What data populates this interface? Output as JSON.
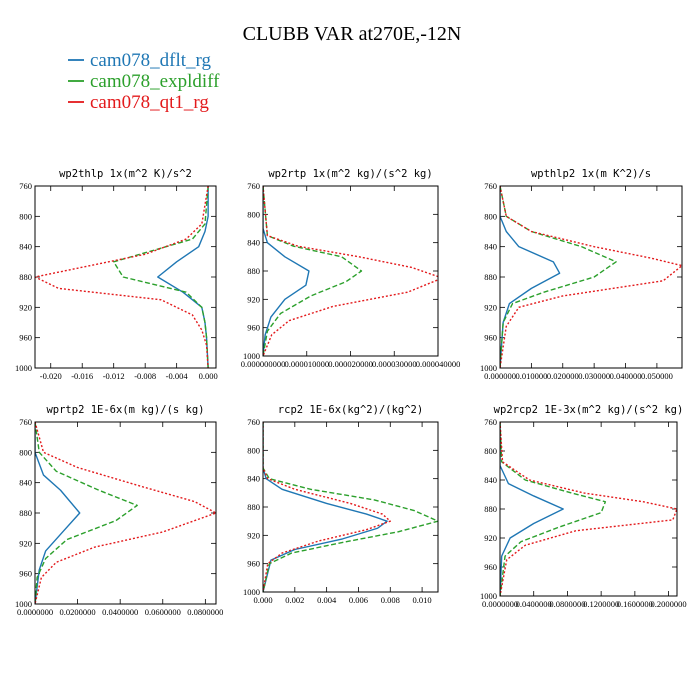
{
  "figure": {
    "title": "CLUBB VAR at270E,-12N",
    "legend": [
      {
        "label": "cam078_dflt_rg",
        "color": "#1f77b4",
        "dash": "solid"
      },
      {
        "label": "cam078_expldiff",
        "color": "#2ca02c",
        "dash": "dashed"
      },
      {
        "label": "cam078_qt1_rg",
        "color": "#e31a1c",
        "dash": "dotted"
      }
    ]
  },
  "chart_data": [
    {
      "type": "line",
      "title": "wp2thlp   1x(m^2 K)/s^2",
      "xlim": [
        -0.022,
        0.001
      ],
      "ylim": [
        760,
        1000
      ],
      "y_inverted": true,
      "xticks": [
        -0.02,
        -0.016,
        -0.012,
        -0.008,
        -0.004,
        0.0
      ],
      "xtick_labels": [
        "-0.020",
        "-0.016",
        "-0.012",
        "-0.008",
        "-0.004",
        "0.000"
      ],
      "yticks": [
        760,
        800,
        840,
        880,
        920,
        960,
        1000
      ],
      "ytick_labels": [
        "760",
        "800",
        "840",
        "880",
        "920",
        "960",
        "1000"
      ],
      "series": [
        {
          "name": "cam078_dflt_rg",
          "points": [
            [
              0.0,
              760
            ],
            [
              0.0,
              800
            ],
            [
              -0.0004,
              820
            ],
            [
              -0.0012,
              840
            ],
            [
              -0.004,
              860
            ],
            [
              -0.0064,
              880
            ],
            [
              -0.0032,
              900
            ],
            [
              -0.0008,
              920
            ],
            [
              -0.0004,
              940
            ],
            [
              -0.0002,
              960
            ],
            [
              0.0,
              1000
            ]
          ]
        },
        {
          "name": "cam078_expldiff",
          "points": [
            [
              0.0,
              760
            ],
            [
              -0.0004,
              810
            ],
            [
              -0.002,
              830
            ],
            [
              -0.012,
              860
            ],
            [
              -0.0108,
              880
            ],
            [
              -0.0028,
              900
            ],
            [
              -0.0008,
              920
            ],
            [
              -0.0004,
              940
            ],
            [
              -0.0002,
              960
            ],
            [
              0.0,
              1000
            ]
          ]
        },
        {
          "name": "cam078_qt1_rg",
          "points": [
            [
              0.0,
              760
            ],
            [
              -0.0008,
              810
            ],
            [
              -0.0028,
              830
            ],
            [
              -0.008,
              850
            ],
            [
              -0.015,
              865
            ],
            [
              -0.022,
              880
            ],
            [
              -0.019,
              895
            ],
            [
              -0.006,
              910
            ],
            [
              -0.002,
              930
            ],
            [
              -0.0008,
              950
            ],
            [
              -0.0002,
              970
            ],
            [
              0.0,
              1000
            ]
          ]
        }
      ]
    },
    {
      "type": "line",
      "title": "wp2rtp   1x(m^2 kg)/(s^2 kg)",
      "xlim": [
        0,
        4e-05
      ],
      "ylim": [
        760,
        1000
      ],
      "y_inverted": true,
      "xticks": [
        0,
        1e-05,
        2e-05,
        3e-05,
        4e-05
      ],
      "xtick_labels": [
        "0.000000000",
        "0.000010000",
        "0.000020000",
        "0.000030000",
        "0.000040000"
      ],
      "yticks": [
        760,
        800,
        840,
        880,
        920,
        960,
        1000
      ],
      "ytick_labels": [
        "760",
        "800",
        "840",
        "880",
        "920",
        "960",
        "1000"
      ],
      "series": [
        {
          "name": "cam078_dflt_rg",
          "points": [
            [
              0,
              760
            ],
            [
              0,
              820
            ],
            [
              1e-06,
              840
            ],
            [
              5e-06,
              860
            ],
            [
              1.05e-05,
              880
            ],
            [
              9.8e-06,
              900
            ],
            [
              5e-06,
              920
            ],
            [
              1.8e-06,
              945
            ],
            [
              5e-07,
              970
            ],
            [
              0,
              1000
            ]
          ]
        },
        {
          "name": "cam078_expldiff",
          "points": [
            [
              0,
              760
            ],
            [
              1e-06,
              830
            ],
            [
              7e-06,
              845
            ],
            [
              1.8e-05,
              860
            ],
            [
              2.25e-05,
              880
            ],
            [
              1.9e-05,
              895
            ],
            [
              1.1e-05,
              915
            ],
            [
              4e-06,
              940
            ],
            [
              1e-06,
              965
            ],
            [
              0,
              1000
            ]
          ]
        },
        {
          "name": "cam078_qt1_rg",
          "points": [
            [
              0,
              760
            ],
            [
              1e-06,
              830
            ],
            [
              8e-06,
              845
            ],
            [
              2.2e-05,
              860
            ],
            [
              3.4e-05,
              875
            ],
            [
              4.1e-05,
              890
            ],
            [
              3.3e-05,
              910
            ],
            [
              1.6e-05,
              930
            ],
            [
              6e-06,
              950
            ],
            [
              2e-06,
              970
            ],
            [
              0,
              1000
            ]
          ]
        }
      ]
    },
    {
      "type": "line",
      "title": "wpthlp2   1x(m K^2)/s",
      "xlim": [
        0,
        0.058
      ],
      "ylim": [
        760,
        1000
      ],
      "y_inverted": true,
      "xticks": [
        0,
        0.01,
        0.02,
        0.03,
        0.04,
        0.05
      ],
      "xtick_labels": [
        "0.000000",
        "0.010000",
        "0.020000",
        "0.030000",
        "0.040000",
        "0.050000"
      ],
      "yticks": [
        760,
        800,
        840,
        880,
        920,
        960,
        1000
      ],
      "ytick_labels": [
        "760",
        "800",
        "840",
        "880",
        "920",
        "960",
        "1000"
      ],
      "series": [
        {
          "name": "cam078_dflt_rg",
          "points": [
            [
              0,
              760
            ],
            [
              0,
              800
            ],
            [
              0.002,
              820
            ],
            [
              0.006,
              840
            ],
            [
              0.017,
              860
            ],
            [
              0.019,
              875
            ],
            [
              0.01,
              895
            ],
            [
              0.003,
              915
            ],
            [
              0.001,
              940
            ],
            [
              0,
              1000
            ]
          ]
        },
        {
          "name": "cam078_expldiff",
          "points": [
            [
              0,
              760
            ],
            [
              0.002,
              800
            ],
            [
              0.01,
              820
            ],
            [
              0.026,
              840
            ],
            [
              0.037,
              860
            ],
            [
              0.03,
              880
            ],
            [
              0.014,
              900
            ],
            [
              0.004,
              915
            ],
            [
              0.001,
              940
            ],
            [
              0,
              1000
            ]
          ]
        },
        {
          "name": "cam078_qt1_rg",
          "points": [
            [
              0,
              760
            ],
            [
              0.002,
              800
            ],
            [
              0.01,
              820
            ],
            [
              0.03,
              840
            ],
            [
              0.048,
              855
            ],
            [
              0.058,
              865
            ],
            [
              0.052,
              885
            ],
            [
              0.02,
              905
            ],
            [
              0.006,
              920
            ],
            [
              0.002,
              945
            ],
            [
              0,
              1000
            ]
          ]
        }
      ]
    },
    {
      "type": "line",
      "title": "wprtp2   1E-6x(m kg)/(s kg)",
      "xlim": [
        0,
        0.085
      ],
      "ylim": [
        760,
        1000
      ],
      "y_inverted": true,
      "xticks": [
        0,
        0.02,
        0.04,
        0.06,
        0.08
      ],
      "xtick_labels": [
        "0.0000000",
        "0.0200000",
        "0.0400000",
        "0.0600000",
        "0.0800000"
      ],
      "yticks": [
        760,
        800,
        840,
        880,
        920,
        960,
        1000
      ],
      "ytick_labels": [
        "760",
        "800",
        "840",
        "880",
        "920",
        "960",
        "1000"
      ],
      "series": [
        {
          "name": "cam078_dflt_rg",
          "points": [
            [
              0,
              760
            ],
            [
              0,
              800
            ],
            [
              0.004,
              830
            ],
            [
              0.012,
              850
            ],
            [
              0.021,
              880
            ],
            [
              0.013,
              905
            ],
            [
              0.005,
              930
            ],
            [
              0.002,
              955
            ],
            [
              0,
              1000
            ]
          ]
        },
        {
          "name": "cam078_expldiff",
          "points": [
            [
              0,
              760
            ],
            [
              0.002,
              800
            ],
            [
              0.01,
              825
            ],
            [
              0.03,
              850
            ],
            [
              0.048,
              870
            ],
            [
              0.038,
              890
            ],
            [
              0.015,
              915
            ],
            [
              0.005,
              940
            ],
            [
              0.001,
              965
            ],
            [
              0,
              1000
            ]
          ]
        },
        {
          "name": "cam078_qt1_rg",
          "points": [
            [
              0,
              760
            ],
            [
              0.004,
              800
            ],
            [
              0.02,
              820
            ],
            [
              0.05,
              845
            ],
            [
              0.075,
              865
            ],
            [
              0.085,
              880
            ],
            [
              0.06,
              905
            ],
            [
              0.028,
              925
            ],
            [
              0.01,
              945
            ],
            [
              0.003,
              965
            ],
            [
              0,
              1000
            ]
          ]
        }
      ]
    },
    {
      "type": "line",
      "title": "rcp2   1E-6x(kg^2)/(kg^2)",
      "xlim": [
        0,
        0.011
      ],
      "ylim": [
        760,
        1000
      ],
      "y_inverted": true,
      "xticks": [
        0,
        0.002,
        0.004,
        0.006,
        0.008,
        0.01
      ],
      "xtick_labels": [
        "0.000",
        "0.002",
        "0.004",
        "0.006",
        "0.008",
        "0.010"
      ],
      "yticks": [
        760,
        800,
        840,
        880,
        920,
        960,
        1000
      ],
      "ytick_labels": [
        "760",
        "800",
        "840",
        "880",
        "920",
        "960",
        "1000"
      ],
      "series": [
        {
          "name": "cam078_dflt_rg",
          "points": [
            [
              0,
              760
            ],
            [
              0,
              825
            ],
            [
              0.0002,
              840
            ],
            [
              0.0012,
              855
            ],
            [
              0.004,
              875
            ],
            [
              0.0065,
              890
            ],
            [
              0.0078,
              900
            ],
            [
              0.0072,
              910
            ],
            [
              0.005,
              925
            ],
            [
              0.002,
              940
            ],
            [
              0.0005,
              955
            ],
            [
              0,
              1000
            ]
          ]
        },
        {
          "name": "cam078_expldiff",
          "points": [
            [
              0,
              760
            ],
            [
              0,
              825
            ],
            [
              0.0004,
              840
            ],
            [
              0.003,
              855
            ],
            [
              0.007,
              870
            ],
            [
              0.0095,
              885
            ],
            [
              0.011,
              900
            ],
            [
              0.0085,
              915
            ],
            [
              0.005,
              930
            ],
            [
              0.0018,
              945
            ],
            [
              0.0004,
              960
            ],
            [
              0,
              1000
            ]
          ]
        },
        {
          "name": "cam078_qt1_rg",
          "points": [
            [
              0,
              760
            ],
            [
              0,
              825
            ],
            [
              0.0003,
              840
            ],
            [
              0.002,
              855
            ],
            [
              0.0055,
              875
            ],
            [
              0.0075,
              890
            ],
            [
              0.008,
              900
            ],
            [
              0.0065,
              912
            ],
            [
              0.0035,
              928
            ],
            [
              0.0012,
              945
            ],
            [
              0.0003,
              960
            ],
            [
              0,
              1000
            ]
          ]
        }
      ]
    },
    {
      "type": "line",
      "title": "wp2rcp2   1E-3x(m^2 kg)/(s^2 kg)",
      "xlim": [
        0,
        0.21
      ],
      "ylim": [
        760,
        1000
      ],
      "y_inverted": true,
      "xticks": [
        0,
        0.04,
        0.08,
        0.12,
        0.16,
        0.2
      ],
      "xtick_labels": [
        "0.0000000",
        "0.0400000",
        "0.0800000",
        "0.1200000",
        "0.1600000",
        "0.2000000"
      ],
      "yticks": [
        760,
        800,
        840,
        880,
        920,
        960,
        1000
      ],
      "ytick_labels": [
        "760",
        "800",
        "840",
        "880",
        "920",
        "960",
        "1000"
      ],
      "series": [
        {
          "name": "cam078_dflt_rg",
          "points": [
            [
              0,
              760
            ],
            [
              0,
              820
            ],
            [
              0.01,
              845
            ],
            [
              0.04,
              862
            ],
            [
              0.075,
              880
            ],
            [
              0.04,
              900
            ],
            [
              0.012,
              920
            ],
            [
              0.002,
              945
            ],
            [
              0,
              1000
            ]
          ]
        },
        {
          "name": "cam078_expldiff",
          "points": [
            [
              0,
              760
            ],
            [
              0.002,
              815
            ],
            [
              0.03,
              840
            ],
            [
              0.085,
              858
            ],
            [
              0.125,
              870
            ],
            [
              0.12,
              885
            ],
            [
              0.07,
              905
            ],
            [
              0.025,
              925
            ],
            [
              0.006,
              945
            ],
            [
              0,
              1000
            ]
          ]
        },
        {
          "name": "cam078_qt1_rg",
          "points": [
            [
              0,
              760
            ],
            [
              0.003,
              815
            ],
            [
              0.035,
              840
            ],
            [
              0.1,
              858
            ],
            [
              0.17,
              870
            ],
            [
              0.21,
              880
            ],
            [
              0.205,
              895
            ],
            [
              0.09,
              910
            ],
            [
              0.03,
              930
            ],
            [
              0.008,
              950
            ],
            [
              0,
              1000
            ]
          ]
        }
      ]
    }
  ]
}
